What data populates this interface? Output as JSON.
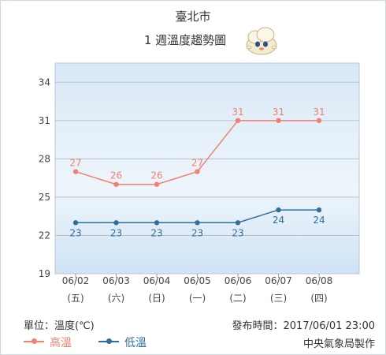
{
  "header": {
    "title": "臺北市",
    "subtitle": "1 週溫度趨勢圖",
    "mascot_icon": "cloud-mascot-icon"
  },
  "chart_data": {
    "type": "line",
    "title": "1 週溫度趨勢圖",
    "categories": [
      "06/02",
      "06/03",
      "06/04",
      "06/05",
      "06/06",
      "06/07",
      "06/08"
    ],
    "weekdays": [
      "(五)",
      "(六)",
      "(日)",
      "(一)",
      "(二)",
      "(三)",
      "(四)"
    ],
    "series": [
      {
        "name": "高溫",
        "color": "#f08070",
        "values": [
          27,
          26,
          26,
          27,
          31,
          31,
          31
        ]
      },
      {
        "name": "低溫",
        "color": "#2f6f9e",
        "values": [
          23,
          23,
          23,
          23,
          23,
          24,
          24
        ]
      }
    ],
    "yticks": [
      19,
      22,
      25,
      28,
      31,
      34
    ],
    "ylim": [
      19,
      35.5
    ],
    "grid": true,
    "legend": "bottom-left"
  },
  "footer": {
    "unit": "單位：溫度(℃)",
    "published": "發布時間：2017/06/01 23:00",
    "credit": "中央氣象局製作"
  }
}
